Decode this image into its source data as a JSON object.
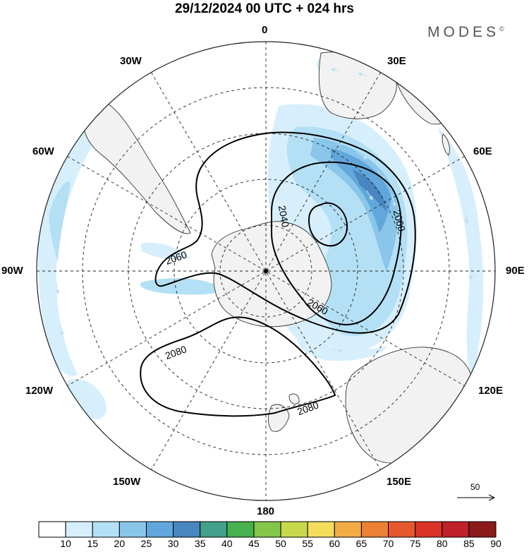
{
  "header": {
    "title": "29/12/2024  00 UTC  + 024 hrs",
    "brand": "MODES"
  },
  "map": {
    "projection": "south-polar-stereographic",
    "meridian_labels": {
      "n0": "0",
      "n30w": "30W",
      "n30e": "30E",
      "n60w": "60W",
      "n60e": "60E",
      "n90w": "90W",
      "n90e": "90E",
      "n120w": "120W",
      "n120e": "120E",
      "n150w": "150W",
      "n150e": "150E",
      "n180": "180"
    },
    "contour_labels": {
      "c2040": "2040",
      "c2060a": "2060",
      "c2060b": "2060",
      "c2060c": "2060",
      "c2080a": "2080",
      "c2080b": "2080"
    },
    "wind_scale_label": "50",
    "colors": {
      "land": "#f2f2f2",
      "coast": "#333333",
      "grid": "#222222",
      "contour": "#000000"
    }
  },
  "colorbar": {
    "ticks": [
      "10",
      "15",
      "20",
      "25",
      "30",
      "35",
      "40",
      "45",
      "50",
      "55",
      "60",
      "65",
      "70",
      "75",
      "80",
      "85",
      "90"
    ],
    "colors": [
      "#ffffff",
      "#d7effc",
      "#b3e0f5",
      "#8ac6ea",
      "#62a7db",
      "#4886c0",
      "#43a08a",
      "#47b04f",
      "#84c54b",
      "#c7d94a",
      "#f5dd5b",
      "#f2ac45",
      "#ec8034",
      "#e5582d",
      "#d93328",
      "#c02027",
      "#8b1a1a"
    ]
  }
}
